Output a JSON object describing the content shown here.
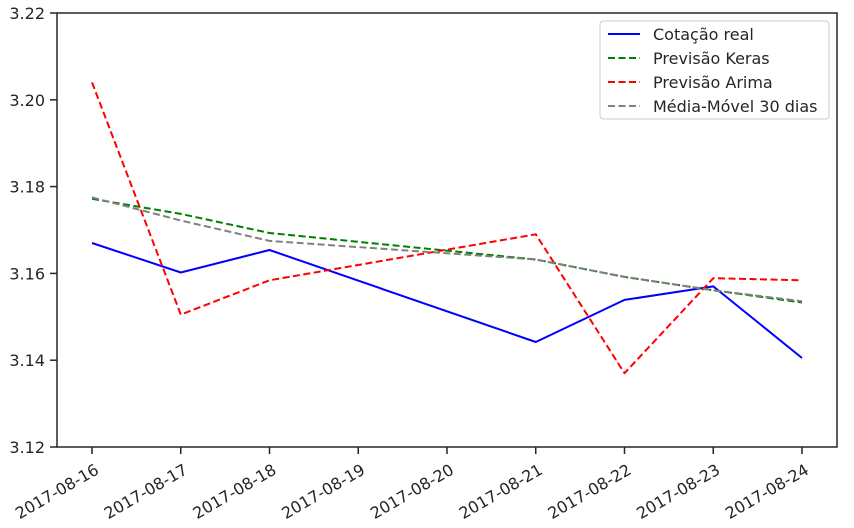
{
  "chart_data": {
    "type": "line",
    "title": "",
    "xlabel": "",
    "ylabel": "",
    "x": [
      "2017-08-16",
      "2017-08-17",
      "2017-08-18",
      "2017-08-19",
      "2017-08-20",
      "2017-08-21",
      "2017-08-22",
      "2017-08-23",
      "2017-08-24"
    ],
    "ylim": [
      3.12,
      3.22
    ],
    "yticks": [
      "3.12",
      "3.14",
      "3.16",
      "3.18",
      "3.20",
      "3.22"
    ],
    "grid": false,
    "legend_position": "top-right",
    "series": [
      {
        "name": "Cotação real",
        "color": "#0000ff",
        "style": "solid",
        "points": [
          [
            "2017-08-16",
            3.167
          ],
          [
            "2017-08-17",
            3.1602
          ],
          [
            "2017-08-18",
            3.1654
          ],
          [
            "2017-08-21",
            3.1442
          ],
          [
            "2017-08-22",
            3.1539
          ],
          [
            "2017-08-23",
            3.157
          ],
          [
            "2017-08-24",
            3.1405
          ]
        ]
      },
      {
        "name": "Previsão Keras",
        "color": "#008000",
        "style": "dashed",
        "points": [
          [
            "2017-08-16",
            3.1772
          ],
          [
            "2017-08-17",
            3.1737
          ],
          [
            "2017-08-18",
            3.1693
          ],
          [
            "2017-08-21",
            3.1632
          ],
          [
            "2017-08-22",
            3.1592
          ],
          [
            "2017-08-23",
            3.1561
          ],
          [
            "2017-08-24",
            3.1533
          ]
        ]
      },
      {
        "name": "Previsão Arima",
        "color": "#ff0000",
        "style": "dashed",
        "points": [
          [
            "2017-08-16",
            3.204
          ],
          [
            "2017-08-17",
            3.1505
          ],
          [
            "2017-08-18",
            3.1584
          ],
          [
            "2017-08-21",
            3.169
          ],
          [
            "2017-08-22",
            3.137
          ],
          [
            "2017-08-23",
            3.1589
          ],
          [
            "2017-08-24",
            3.1584
          ]
        ]
      },
      {
        "name": "Média-Móvel 30 dias",
        "color": "#808080",
        "style": "dashed",
        "points": [
          [
            "2017-08-16",
            3.1775
          ],
          [
            "2017-08-17",
            3.1722
          ],
          [
            "2017-08-18",
            3.1675
          ],
          [
            "2017-08-21",
            3.1632
          ],
          [
            "2017-08-22",
            3.1592
          ],
          [
            "2017-08-23",
            3.1561
          ],
          [
            "2017-08-24",
            3.1536
          ]
        ]
      }
    ]
  }
}
